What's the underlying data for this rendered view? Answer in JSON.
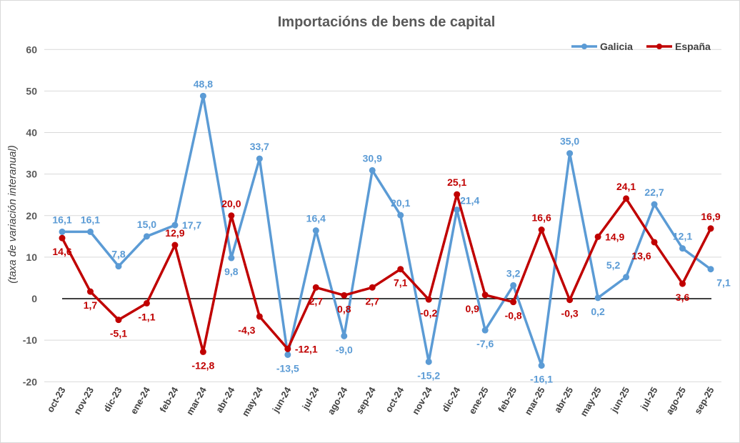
{
  "chart_data": {
    "type": "line",
    "title": "Importacións de bens de capital",
    "xlabel": "",
    "ylabel": "(taxa de variación interanual)",
    "ylim": [
      -20,
      60
    ],
    "yticks": [
      -20,
      -10,
      0,
      10,
      20,
      30,
      40,
      50,
      60
    ],
    "grid": true,
    "legend_position": "top-right",
    "categories": [
      "oct-23",
      "nov-23",
      "dic-23",
      "ene-24",
      "feb-24",
      "mar-24",
      "abr-24",
      "may-24",
      "jun-24",
      "jul-24",
      "ago-24",
      "sep-24",
      "oct-24",
      "nov-24",
      "dic-24",
      "ene-25",
      "feb-25",
      "mar-25",
      "abr-25",
      "may-25",
      "jun-25",
      "jul-25",
      "ago-25",
      "sep-25"
    ],
    "series": [
      {
        "name": "Galicia",
        "color": "#5B9BD5",
        "values": [
          16.1,
          16.1,
          7.8,
          15.0,
          17.7,
          48.8,
          9.8,
          33.7,
          -13.5,
          16.4,
          -9.0,
          30.9,
          20.1,
          -15.2,
          21.4,
          -7.6,
          3.2,
          -16.1,
          35.0,
          0.2,
          5.2,
          22.7,
          12.1,
          7.1
        ]
      },
      {
        "name": "España",
        "color": "#C00000",
        "values": [
          14.6,
          1.7,
          -5.1,
          -1.1,
          12.9,
          -12.8,
          20.0,
          -4.3,
          -12.1,
          2.7,
          0.8,
          2.7,
          7.1,
          -0.2,
          25.1,
          0.9,
          -0.8,
          16.6,
          -0.3,
          14.9,
          24.1,
          13.6,
          3.6,
          16.9
        ]
      }
    ]
  }
}
